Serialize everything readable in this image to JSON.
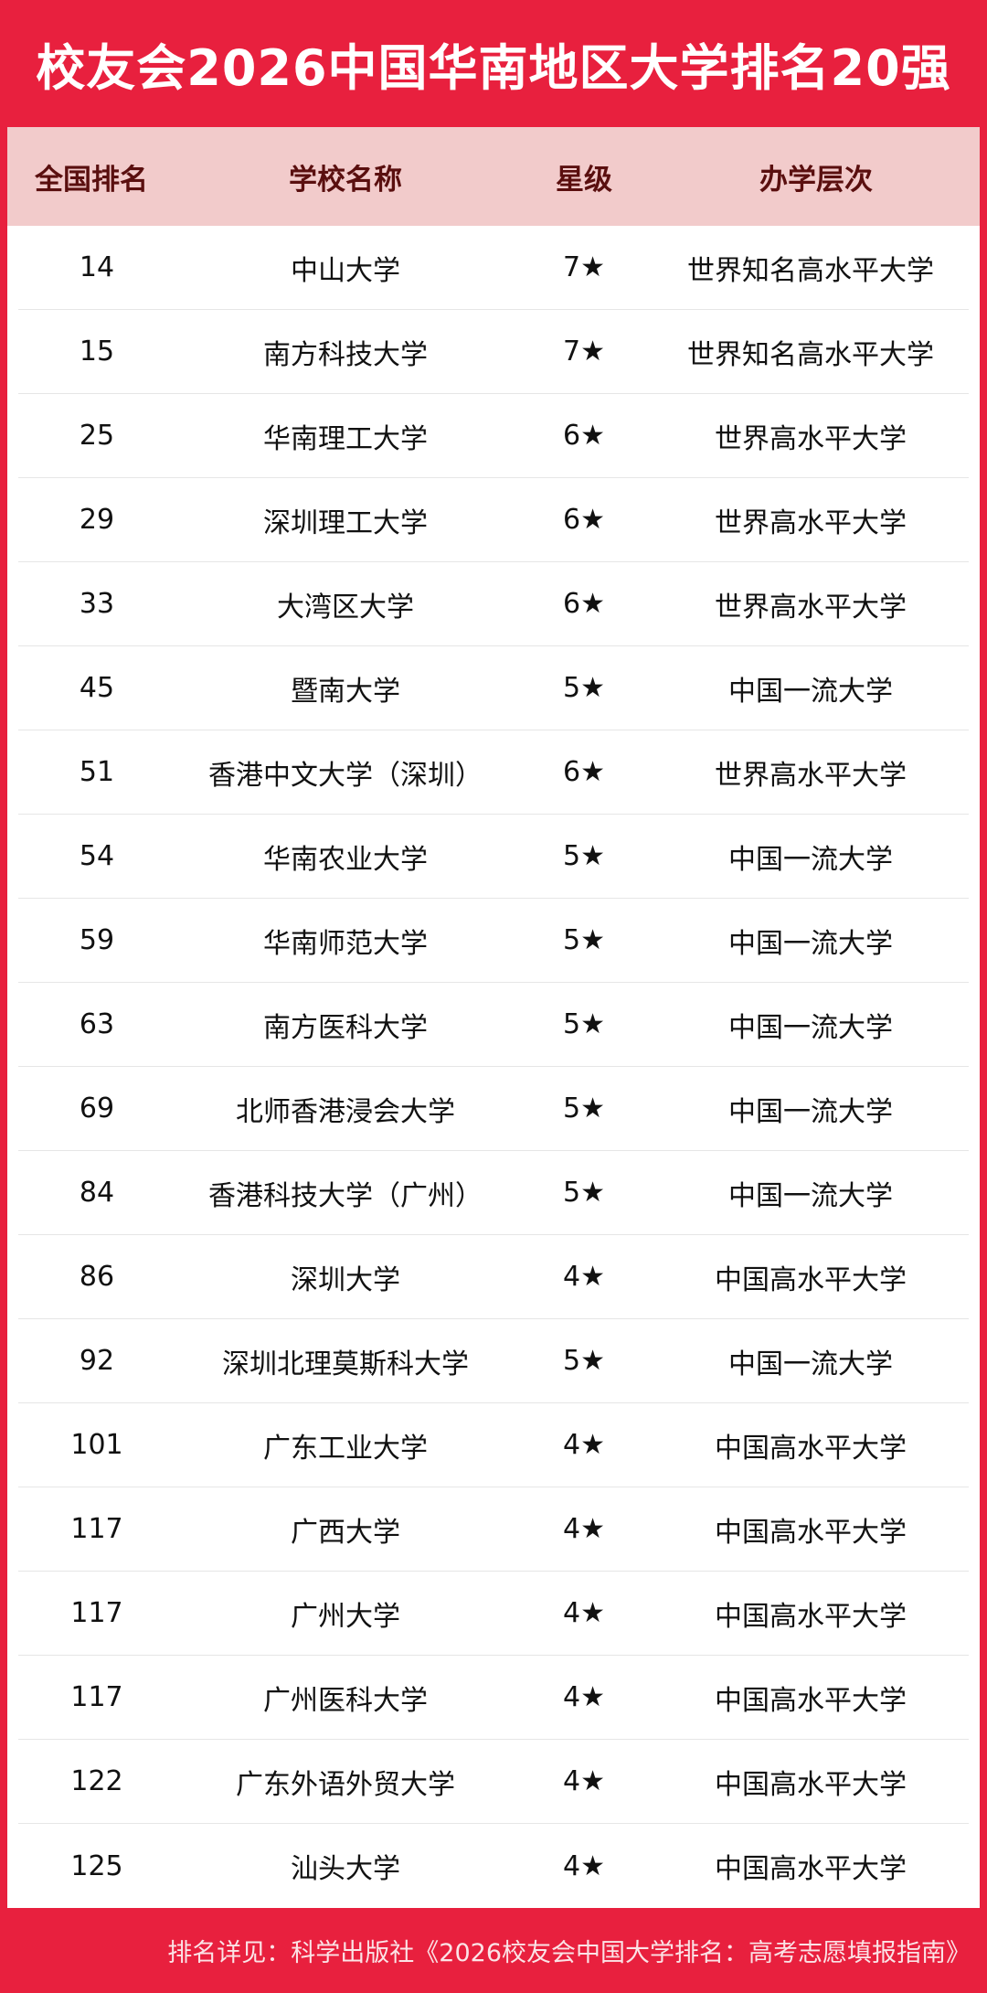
{
  "title": "校友会2026中国华南地区大学排名20强",
  "columns": [
    "全国排名",
    "学校名称",
    "星级",
    "办学层次"
  ],
  "rows": [
    {
      "rank": "14",
      "name": "中山大学",
      "stars": "7★",
      "level": "世界知名高水平大学"
    },
    {
      "rank": "15",
      "name": "南方科技大学",
      "stars": "7★",
      "level": "世界知名高水平大学"
    },
    {
      "rank": "25",
      "name": "华南理工大学",
      "stars": "6★",
      "level": "世界高水平大学"
    },
    {
      "rank": "29",
      "name": "深圳理工大学",
      "stars": "6★",
      "level": "世界高水平大学"
    },
    {
      "rank": "33",
      "name": "大湾区大学",
      "stars": "6★",
      "level": "世界高水平大学"
    },
    {
      "rank": "45",
      "name": "暨南大学",
      "stars": "5★",
      "level": "中国一流大学"
    },
    {
      "rank": "51",
      "name": "香港中文大学（深圳）",
      "stars": "6★",
      "level": "世界高水平大学"
    },
    {
      "rank": "54",
      "name": "华南农业大学",
      "stars": "5★",
      "level": "中国一流大学"
    },
    {
      "rank": "59",
      "name": "华南师范大学",
      "stars": "5★",
      "level": "中国一流大学"
    },
    {
      "rank": "63",
      "name": "南方医科大学",
      "stars": "5★",
      "level": "中国一流大学"
    },
    {
      "rank": "69",
      "name": "北师香港浸会大学",
      "stars": "5★",
      "level": "中国一流大学"
    },
    {
      "rank": "84",
      "name": "香港科技大学（广州）",
      "stars": "5★",
      "level": "中国一流大学"
    },
    {
      "rank": "86",
      "name": "深圳大学",
      "stars": "4★",
      "level": "中国高水平大学"
    },
    {
      "rank": "92",
      "name": "深圳北理莫斯科大学",
      "stars": "5★",
      "level": "中国一流大学"
    },
    {
      "rank": "101",
      "name": "广东工业大学",
      "stars": "4★",
      "level": "中国高水平大学"
    },
    {
      "rank": "117",
      "name": "广西大学",
      "stars": "4★",
      "level": "中国高水平大学"
    },
    {
      "rank": "117",
      "name": "广州大学",
      "stars": "4★",
      "level": "中国高水平大学"
    },
    {
      "rank": "117",
      "name": "广州医科大学",
      "stars": "4★",
      "level": "中国高水平大学"
    },
    {
      "rank": "122",
      "name": "广东外语外贸大学",
      "stars": "4★",
      "level": "中国高水平大学"
    },
    {
      "rank": "125",
      "name": "汕头大学",
      "stars": "4★",
      "level": "中国高水平大学"
    }
  ],
  "footer": "排名详见：科学出版社《2026校友会中国大学排名：高考志愿填报指南》",
  "colors": {
    "brand_red": "#e8203e",
    "header_bg": "#f2cbcb",
    "header_text": "#5a0f0f"
  }
}
